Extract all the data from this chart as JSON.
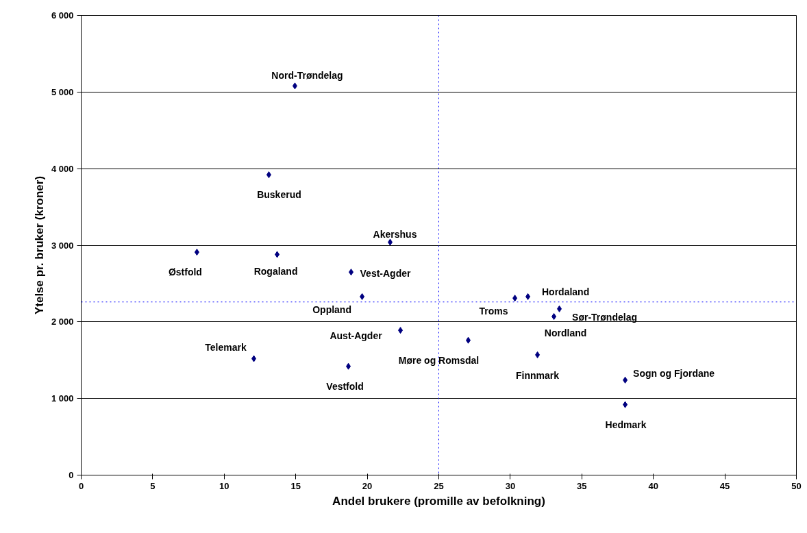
{
  "chart_data": {
    "type": "scatter",
    "xlabel": "Andel brukere (promille av befolkning)",
    "ylabel": "Ytelse pr. bruker (kroner)",
    "series": [
      {
        "color": "#000080",
        "x": [
          14.94,
          13.12,
          8.09,
          13.7,
          21.6,
          18.87,
          19.64,
          22.32,
          12.07,
          18.68,
          27.06,
          30.32,
          31.23,
          33.43,
          33.05,
          31.9,
          38.03,
          38.03
        ],
        "values": [
          5080,
          3920,
          2910,
          2880,
          3040,
          2650,
          2330,
          1890,
          1520,
          1420,
          1760,
          2310,
          2330,
          2170,
          2070,
          1570,
          1240,
          920
        ]
      }
    ],
    "annotations": [
      {
        "text": "Nord-Trøndelag",
        "x": 14.94,
        "y": 5080
      },
      {
        "text": "Buskerud",
        "x": 13.12,
        "y": 3920
      },
      {
        "text": "Østfold",
        "x": 8.09,
        "y": 2910
      },
      {
        "text": "Rogaland",
        "x": 13.7,
        "y": 2880
      },
      {
        "text": "Akershus",
        "x": 21.6,
        "y": 3040
      },
      {
        "text": "Vest-Agder",
        "x": 18.87,
        "y": 2650
      },
      {
        "text": "Oppland",
        "x": 19.64,
        "y": 2330
      },
      {
        "text": "Aust-Agder",
        "x": 22.32,
        "y": 1890
      },
      {
        "text": "Telemark",
        "x": 12.07,
        "y": 1520
      },
      {
        "text": "Vestfold",
        "x": 18.68,
        "y": 1420
      },
      {
        "text": "Møre og Romsdal",
        "x": 27.06,
        "y": 1760
      },
      {
        "text": "Troms",
        "x": 30.32,
        "y": 2310
      },
      {
        "text": "Hordaland",
        "x": 31.23,
        "y": 2330
      },
      {
        "text": "Sør-Trøndelag",
        "x": 33.43,
        "y": 2170
      },
      {
        "text": "Nordland",
        "x": 33.05,
        "y": 2070
      },
      {
        "text": "Finnmark",
        "x": 31.9,
        "y": 1570
      },
      {
        "text": "Sogn og Fjordane",
        "x": 38.03,
        "y": 1240
      },
      {
        "text": "Hedmark",
        "x": 38.03,
        "y": 920
      }
    ],
    "ref_lines": [
      {
        "axis": "x",
        "value": 25,
        "color": "#0000ff",
        "line_style": "dotted"
      },
      {
        "axis": "y",
        "value": 2260,
        "color": "#0000ff",
        "line_style": "dotted"
      }
    ],
    "xlim": [
      0,
      50
    ],
    "xticks": [
      0,
      5,
      10,
      15,
      20,
      25,
      30,
      35,
      40,
      45,
      50
    ],
    "ylim": [
      0,
      6000
    ],
    "yticks": [
      0,
      {
        "value": 1000,
        "label": "1 000"
      },
      {
        "value": 2000,
        "label": "2 000"
      },
      {
        "value": 3000,
        "label": "3 000"
      },
      {
        "value": 4000,
        "label": "4 000"
      },
      {
        "value": 5000,
        "label": "5 000"
      },
      {
        "value": 6000,
        "label": "6 000"
      }
    ],
    "grid": "y",
    "marker": "diamond"
  }
}
